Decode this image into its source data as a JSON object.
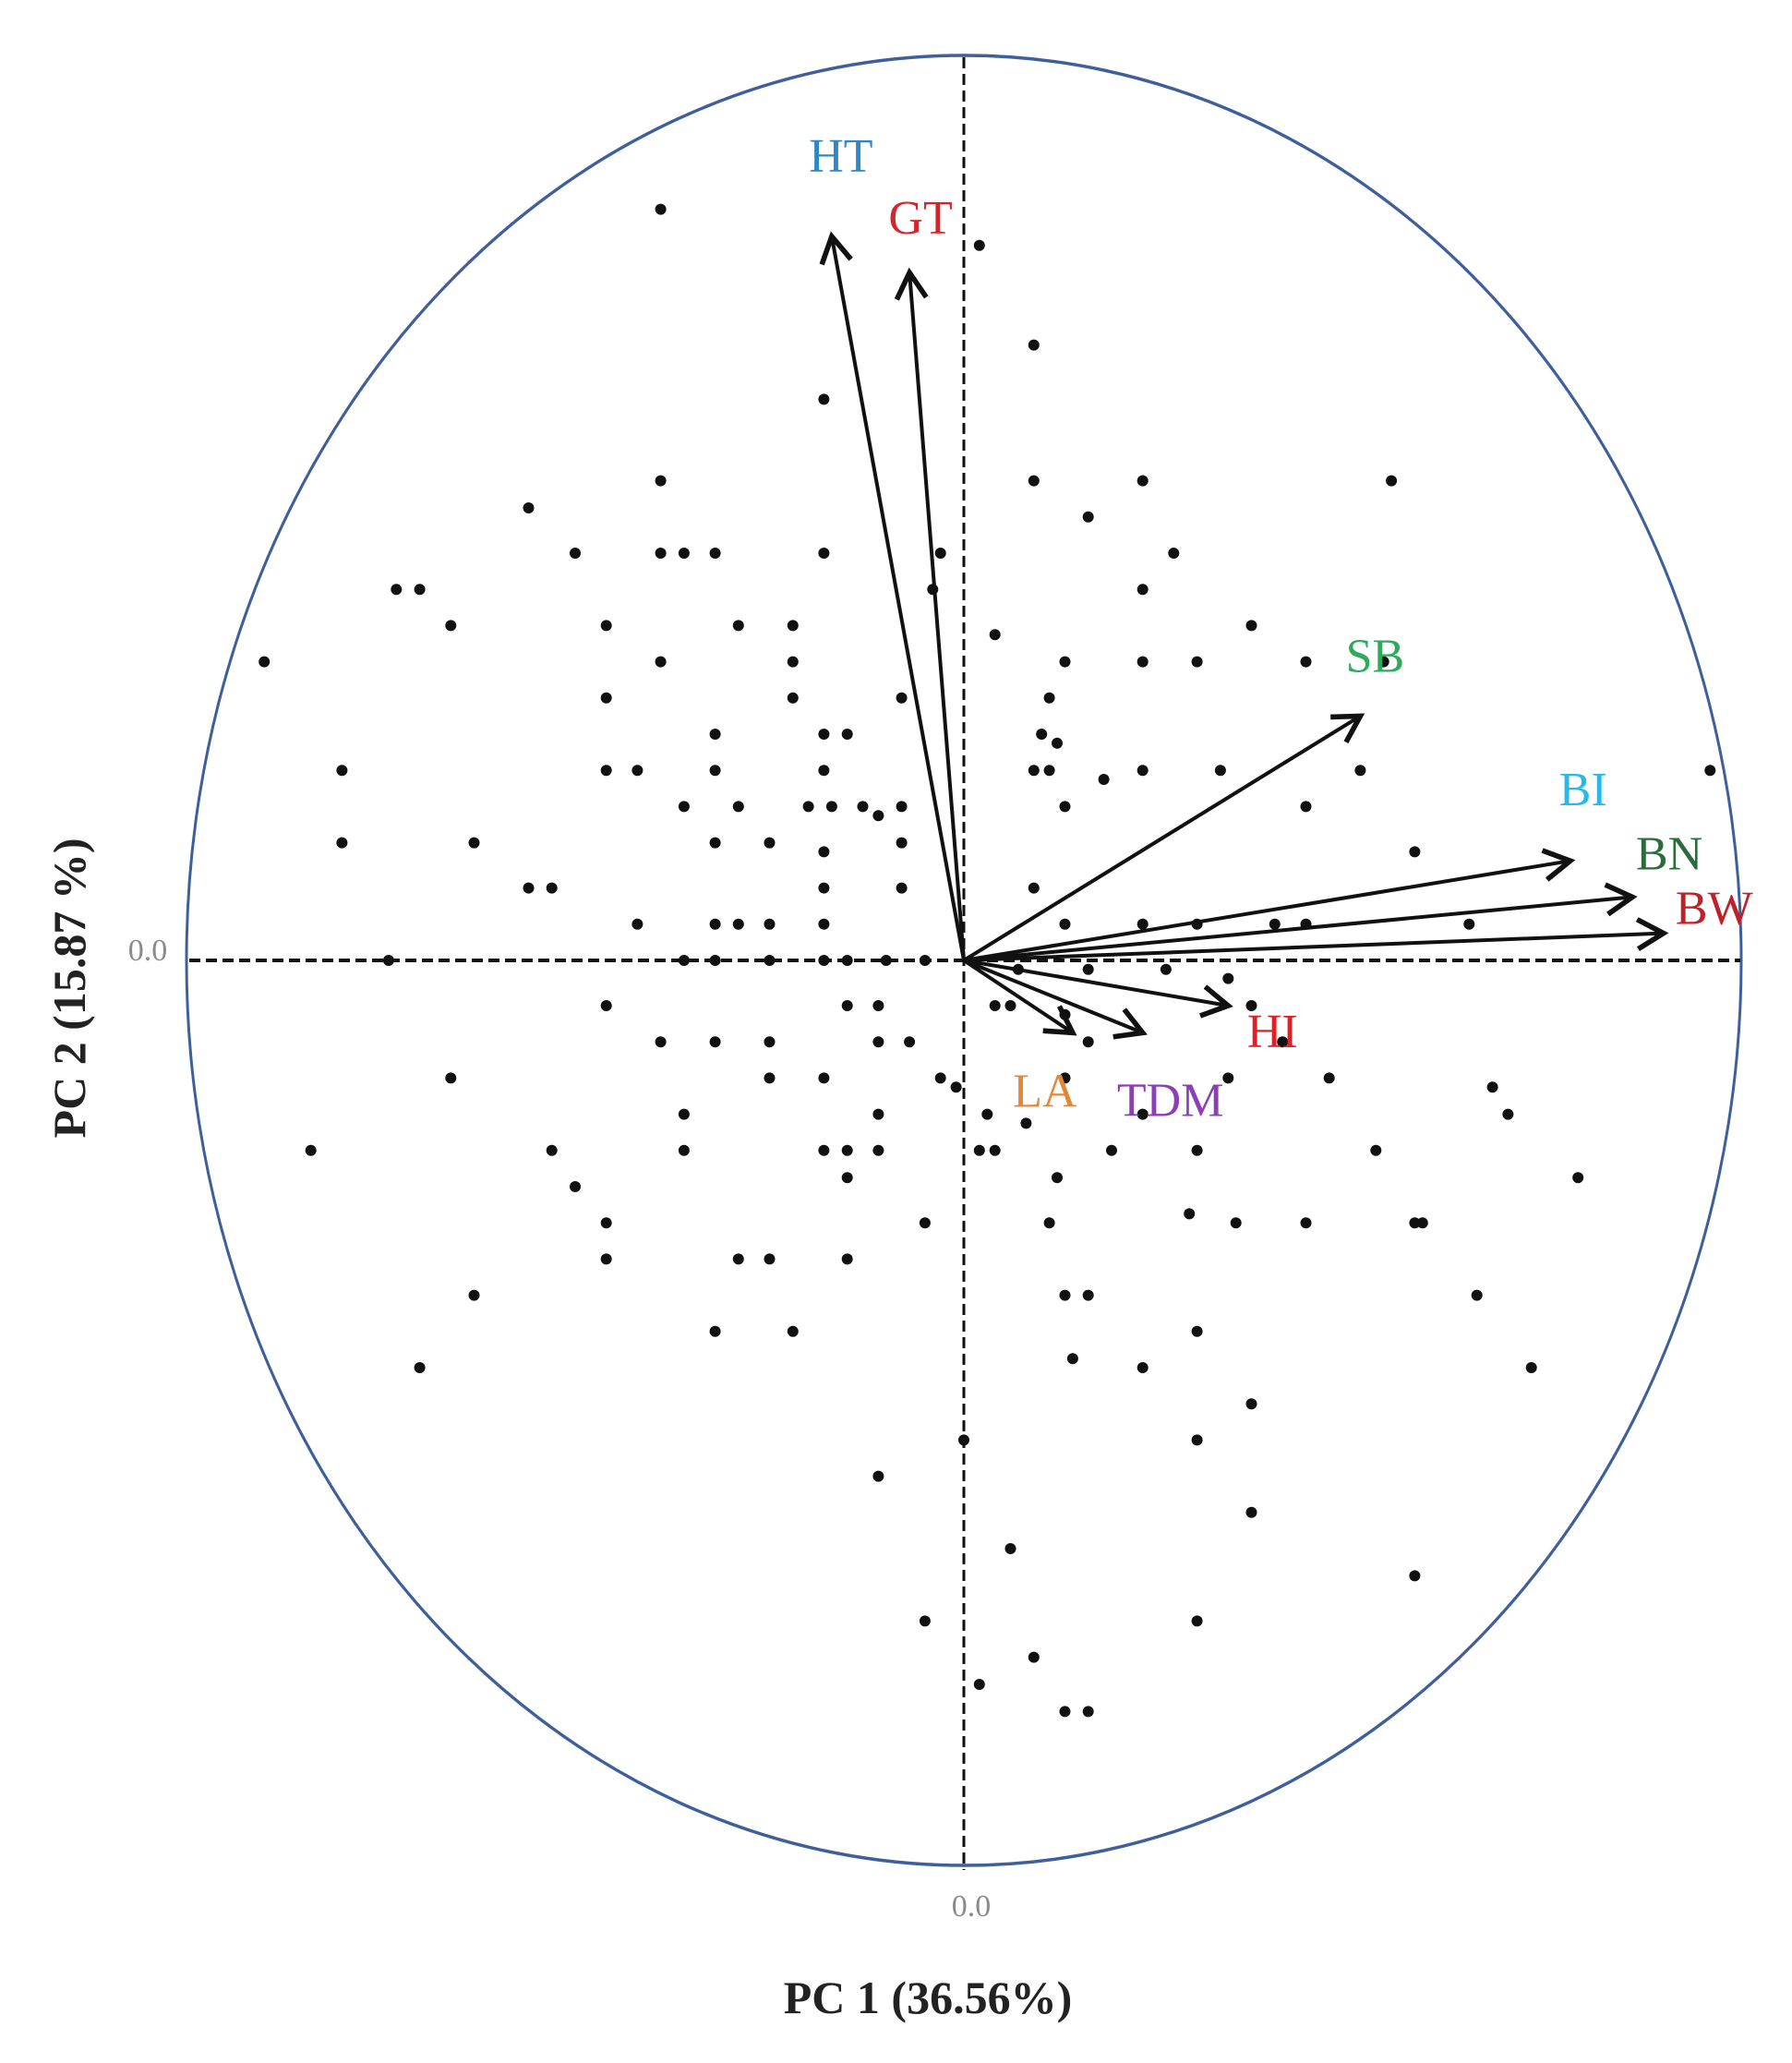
{
  "chart_data": {
    "type": "scatter",
    "subtype": "pca-biplot",
    "xlabel": "PC 1 (36.56%)",
    "ylabel": "PC 2 (15.87 %)",
    "x_origin_label": "0.0",
    "y_origin_label": "0.0",
    "xlim": [
      -1,
      1
    ],
    "ylim": [
      -1,
      1
    ],
    "grid": false,
    "circle_color": "#3f5f9a",
    "vectors": [
      {
        "name": "HT",
        "color": "#2f86c9",
        "x": -0.17,
        "y": 0.8
      },
      {
        "name": "GT",
        "color": "#d6242a",
        "x": -0.07,
        "y": 0.76
      },
      {
        "name": "SB",
        "color": "#2eaa5a",
        "x": 0.51,
        "y": 0.27
      },
      {
        "name": "BI",
        "color": "#28b9ea",
        "x": 0.78,
        "y": 0.11
      },
      {
        "name": "BN",
        "color": "#2e6b3c",
        "x": 0.86,
        "y": 0.07
      },
      {
        "name": "BW",
        "color": "#c02027",
        "x": 0.9,
        "y": 0.03
      },
      {
        "name": "HI",
        "color": "#e31e24",
        "x": 0.34,
        "y": -0.05
      },
      {
        "name": "TDM",
        "color": "#8b3fb5",
        "x": 0.23,
        "y": -0.08
      },
      {
        "name": "LA",
        "color": "#e0893a",
        "x": 0.14,
        "y": -0.08
      }
    ],
    "points": [
      [
        -0.39,
        0.83
      ],
      [
        0.02,
        0.79
      ],
      [
        0.09,
        0.68
      ],
      [
        -0.18,
        0.62
      ],
      [
        -0.39,
        0.53
      ],
      [
        0.09,
        0.53
      ],
      [
        0.23,
        0.53
      ],
      [
        0.55,
        0.53
      ],
      [
        -0.56,
        0.5
      ],
      [
        0.16,
        0.49
      ],
      [
        -0.5,
        0.45
      ],
      [
        -0.39,
        0.45
      ],
      [
        -0.36,
        0.45
      ],
      [
        -0.32,
        0.45
      ],
      [
        -0.18,
        0.45
      ],
      [
        -0.03,
        0.45
      ],
      [
        0.27,
        0.45
      ],
      [
        -0.73,
        0.41
      ],
      [
        -0.7,
        0.41
      ],
      [
        -0.04,
        0.41
      ],
      [
        0.23,
        0.41
      ],
      [
        -0.66,
        0.37
      ],
      [
        -0.46,
        0.37
      ],
      [
        -0.29,
        0.37
      ],
      [
        -0.22,
        0.37
      ],
      [
        0.04,
        0.36
      ],
      [
        0.37,
        0.37
      ],
      [
        -0.9,
        0.33
      ],
      [
        -0.39,
        0.33
      ],
      [
        -0.22,
        0.33
      ],
      [
        0.13,
        0.33
      ],
      [
        0.23,
        0.33
      ],
      [
        0.3,
        0.33
      ],
      [
        0.44,
        0.33
      ],
      [
        0.54,
        0.33
      ],
      [
        -0.46,
        0.29
      ],
      [
        -0.22,
        0.29
      ],
      [
        -0.08,
        0.29
      ],
      [
        0.11,
        0.29
      ],
      [
        0.1,
        0.25
      ],
      [
        0.09,
        0.21
      ],
      [
        -0.32,
        0.25
      ],
      [
        -0.18,
        0.25
      ],
      [
        -0.15,
        0.25
      ],
      [
        0.12,
        0.24
      ],
      [
        -0.8,
        0.21
      ],
      [
        -0.46,
        0.21
      ],
      [
        -0.42,
        0.21
      ],
      [
        -0.32,
        0.21
      ],
      [
        -0.18,
        0.21
      ],
      [
        0.11,
        0.21
      ],
      [
        0.18,
        0.2
      ],
      [
        0.23,
        0.21
      ],
      [
        0.33,
        0.21
      ],
      [
        0.51,
        0.21
      ],
      [
        0.96,
        0.21
      ],
      [
        -0.36,
        0.17
      ],
      [
        -0.29,
        0.17
      ],
      [
        -0.2,
        0.17
      ],
      [
        -0.17,
        0.17
      ],
      [
        -0.13,
        0.17
      ],
      [
        -0.11,
        0.16
      ],
      [
        -0.08,
        0.17
      ],
      [
        0.13,
        0.17
      ],
      [
        0.44,
        0.17
      ],
      [
        -0.8,
        0.13
      ],
      [
        -0.63,
        0.13
      ],
      [
        -0.32,
        0.13
      ],
      [
        -0.25,
        0.13
      ],
      [
        -0.18,
        0.12
      ],
      [
        -0.08,
        0.13
      ],
      [
        0.58,
        0.12
      ],
      [
        -0.56,
        0.08
      ],
      [
        -0.53,
        0.08
      ],
      [
        -0.18,
        0.08
      ],
      [
        -0.08,
        0.08
      ],
      [
        0.09,
        0.08
      ],
      [
        -0.42,
        0.04
      ],
      [
        -0.32,
        0.04
      ],
      [
        -0.29,
        0.04
      ],
      [
        -0.25,
        0.04
      ],
      [
        -0.18,
        0.04
      ],
      [
        0.13,
        0.04
      ],
      [
        0.23,
        0.04
      ],
      [
        0.3,
        0.04
      ],
      [
        0.4,
        0.04
      ],
      [
        0.44,
        0.04
      ],
      [
        0.65,
        0.04
      ],
      [
        -0.74,
        0.0
      ],
      [
        -0.36,
        0.0
      ],
      [
        -0.32,
        0.0
      ],
      [
        -0.25,
        0.0
      ],
      [
        -0.18,
        0.0
      ],
      [
        -0.15,
        0.0
      ],
      [
        -0.1,
        0.0
      ],
      [
        -0.05,
        0.0
      ],
      [
        0.07,
        -0.01
      ],
      [
        0.16,
        -0.01
      ],
      [
        0.26,
        -0.01
      ],
      [
        0.34,
        -0.02
      ],
      [
        -0.46,
        -0.05
      ],
      [
        -0.15,
        -0.05
      ],
      [
        -0.11,
        -0.05
      ],
      [
        0.04,
        -0.05
      ],
      [
        0.06,
        -0.05
      ],
      [
        0.13,
        -0.06
      ],
      [
        0.37,
        -0.05
      ],
      [
        -0.39,
        -0.09
      ],
      [
        -0.32,
        -0.09
      ],
      [
        -0.25,
        -0.09
      ],
      [
        -0.11,
        -0.09
      ],
      [
        -0.07,
        -0.09
      ],
      [
        0.16,
        -0.09
      ],
      [
        0.41,
        -0.09
      ],
      [
        -0.66,
        -0.13
      ],
      [
        -0.25,
        -0.13
      ],
      [
        -0.18,
        -0.13
      ],
      [
        -0.03,
        -0.13
      ],
      [
        -0.01,
        -0.14
      ],
      [
        0.13,
        -0.13
      ],
      [
        0.34,
        -0.13
      ],
      [
        0.47,
        -0.13
      ],
      [
        0.68,
        -0.14
      ],
      [
        -0.36,
        -0.17
      ],
      [
        -0.11,
        -0.17
      ],
      [
        0.03,
        -0.17
      ],
      [
        0.08,
        -0.18
      ],
      [
        0.23,
        -0.17
      ],
      [
        0.7,
        -0.17
      ],
      [
        -0.84,
        -0.21
      ],
      [
        -0.53,
        -0.21
      ],
      [
        -0.36,
        -0.21
      ],
      [
        -0.18,
        -0.21
      ],
      [
        -0.15,
        -0.21
      ],
      [
        -0.11,
        -0.21
      ],
      [
        0.02,
        -0.21
      ],
      [
        0.04,
        -0.21
      ],
      [
        0.19,
        -0.21
      ],
      [
        0.3,
        -0.21
      ],
      [
        0.53,
        -0.21
      ],
      [
        -0.15,
        -0.24
      ],
      [
        0.79,
        -0.24
      ],
      [
        -0.5,
        -0.25
      ],
      [
        0.12,
        -0.24
      ],
      [
        -0.46,
        -0.29
      ],
      [
        -0.05,
        -0.29
      ],
      [
        0.11,
        -0.29
      ],
      [
        0.29,
        -0.28
      ],
      [
        0.35,
        -0.29
      ],
      [
        0.44,
        -0.29
      ],
      [
        0.58,
        -0.29
      ],
      [
        0.59,
        -0.29
      ],
      [
        -0.46,
        -0.33
      ],
      [
        -0.29,
        -0.33
      ],
      [
        -0.25,
        -0.33
      ],
      [
        -0.15,
        -0.33
      ],
      [
        -0.63,
        -0.37
      ],
      [
        0.13,
        -0.37
      ],
      [
        0.16,
        -0.37
      ],
      [
        0.66,
        -0.37
      ],
      [
        -0.32,
        -0.41
      ],
      [
        -0.22,
        -0.41
      ],
      [
        0.3,
        -0.41
      ],
      [
        -0.7,
        -0.45
      ],
      [
        0.14,
        -0.44
      ],
      [
        0.23,
        -0.45
      ],
      [
        0.73,
        -0.45
      ],
      [
        0.37,
        -0.49
      ],
      [
        0.0,
        -0.53
      ],
      [
        0.3,
        -0.53
      ],
      [
        -0.11,
        -0.57
      ],
      [
        0.37,
        -0.61
      ],
      [
        0.06,
        -0.65
      ],
      [
        0.58,
        -0.68
      ],
      [
        -0.05,
        -0.73
      ],
      [
        0.3,
        -0.73
      ],
      [
        0.09,
        -0.77
      ],
      [
        0.02,
        -0.8
      ],
      [
        0.13,
        -0.83
      ],
      [
        0.16,
        -0.83
      ]
    ]
  }
}
